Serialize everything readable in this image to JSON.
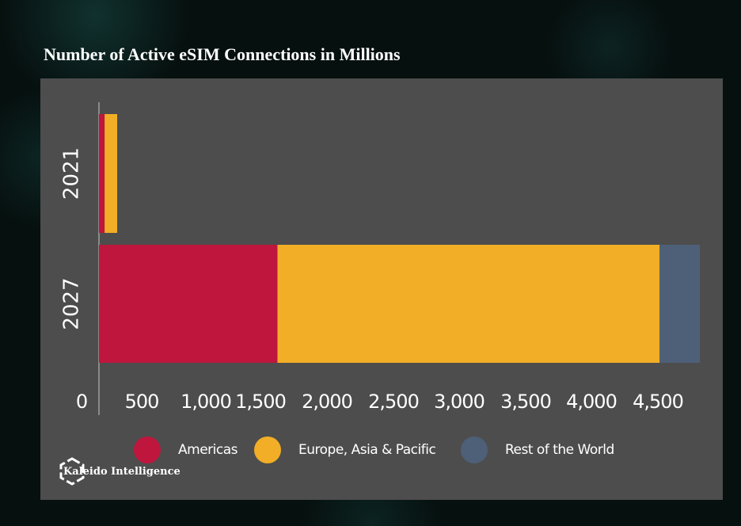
{
  "chart_data": {
    "type": "bar",
    "orientation": "horizontal",
    "stacked": true,
    "title": "Number of Active eSIM Connections in Millions",
    "categories": [
      "2021",
      "2027"
    ],
    "series": [
      {
        "name": "Americas",
        "color": "#bf163d",
        "values": [
          45,
          1420
        ]
      },
      {
        "name": "Europe, Asia & Pacific",
        "color": "#f2ae26",
        "values": [
          100,
          3040
        ]
      },
      {
        "name": "Rest of the World",
        "color": "#4e6078",
        "values": [
          0,
          320
        ]
      }
    ],
    "x_ticks": [
      "0",
      "500",
      "1,000",
      "1,500",
      "2,000",
      "2,500",
      "3,000",
      "3,500",
      "4,000",
      "4,500"
    ],
    "xlim": [
      0,
      4780
    ],
    "grid": false,
    "legend_position": "bottom"
  },
  "brand": {
    "name": "Kaleido Intelligence",
    "logo_icon": "hexagon-icon"
  },
  "colors": {
    "panel_background": "#4d4d4d",
    "page_background": "#06100f",
    "text": "#ffffff"
  }
}
